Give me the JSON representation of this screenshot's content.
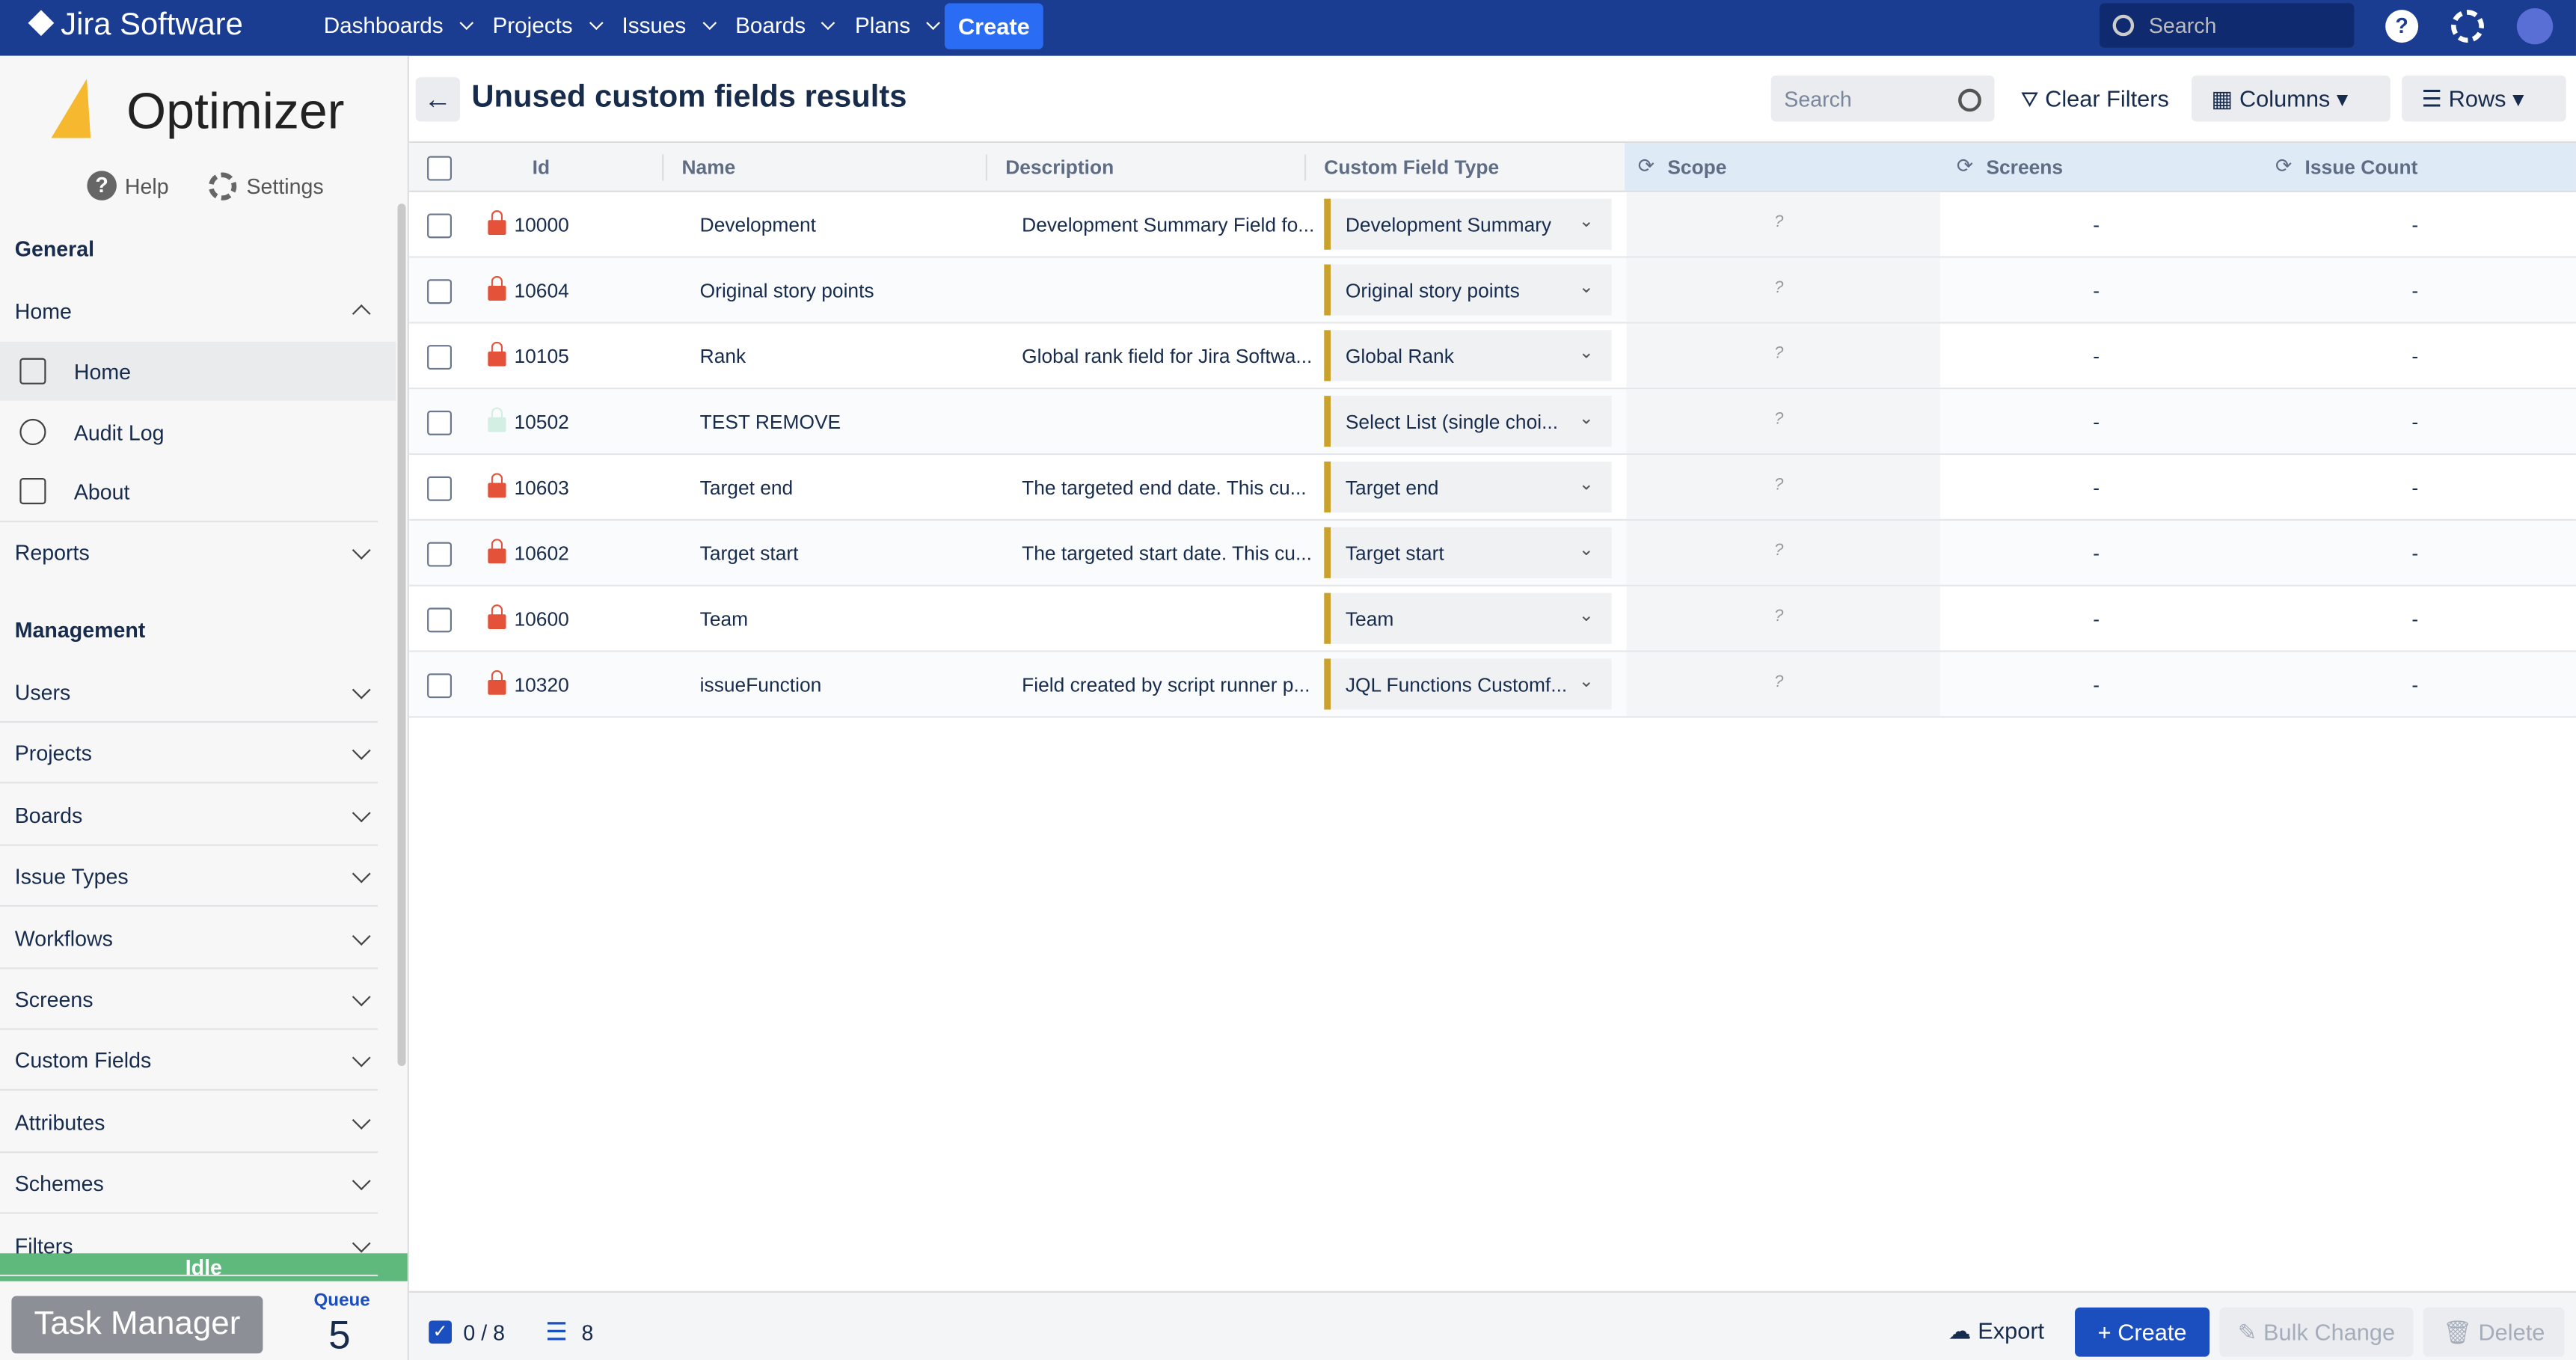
{
  "nav": {
    "brand": "Jira Software",
    "menu": [
      "Dashboards",
      "Projects",
      "Issues",
      "Boards",
      "Plans"
    ],
    "create": "Create",
    "search": "Search"
  },
  "sidebar": {
    "app": "Optimizer",
    "help": "Help",
    "settings": "Settings",
    "general": {
      "heading": "General",
      "home": "Home",
      "children": [
        "Home",
        "Audit Log",
        "About"
      ],
      "reports": "Reports"
    },
    "management": {
      "heading": "Management",
      "items": [
        "Users",
        "Projects",
        "Boards",
        "Issue Types",
        "Workflows",
        "Screens",
        "Custom Fields",
        "Attributes",
        "Schemes",
        "Filters"
      ]
    },
    "status": "Idle",
    "task_manager": "Task Manager",
    "queue_label": "Queue",
    "queue": 5
  },
  "header": {
    "title": "Unused custom fields results",
    "search": "Search",
    "clear_filters": "Clear Filters",
    "columns": "Columns",
    "rows": "Rows"
  },
  "table": {
    "columns": [
      "Id",
      "Name",
      "Description",
      "Custom Field Type",
      "Scope",
      "Screens",
      "Issue Count"
    ],
    "rows": [
      {
        "locked": true,
        "cells": [
          "10000",
          "Development",
          "Development Summary Field fo...",
          "Development Summary",
          "?",
          "-",
          "-"
        ]
      },
      {
        "locked": true,
        "cells": [
          "10604",
          "Original story points",
          "",
          "Original story points",
          "?",
          "-",
          "-"
        ]
      },
      {
        "locked": true,
        "cells": [
          "10105",
          "Rank",
          "Global rank field for Jira Softwa...",
          "Global Rank",
          "?",
          "-",
          "-"
        ]
      },
      {
        "locked": false,
        "cells": [
          "10502",
          "TEST REMOVE",
          "",
          "Select List (single choi...",
          "?",
          "-",
          "-"
        ]
      },
      {
        "locked": true,
        "cells": [
          "10603",
          "Target end",
          "The targeted end date. This cu...",
          "Target end",
          "?",
          "-",
          "-"
        ]
      },
      {
        "locked": true,
        "cells": [
          "10602",
          "Target start",
          "The targeted start date. This cu...",
          "Target start",
          "?",
          "-",
          "-"
        ]
      },
      {
        "locked": true,
        "cells": [
          "10600",
          "Team",
          "",
          "Team",
          "?",
          "-",
          "-"
        ]
      },
      {
        "locked": true,
        "cells": [
          "10320",
          "issueFunction",
          "Field created by script runner p...",
          "JQL Functions Customf...",
          "?",
          "-",
          "-"
        ]
      }
    ]
  },
  "footer": {
    "selected": "0 / 8",
    "total": "8",
    "export": "Export",
    "create": "Create",
    "bulk_change": "Bulk Change",
    "delete": "Delete"
  }
}
